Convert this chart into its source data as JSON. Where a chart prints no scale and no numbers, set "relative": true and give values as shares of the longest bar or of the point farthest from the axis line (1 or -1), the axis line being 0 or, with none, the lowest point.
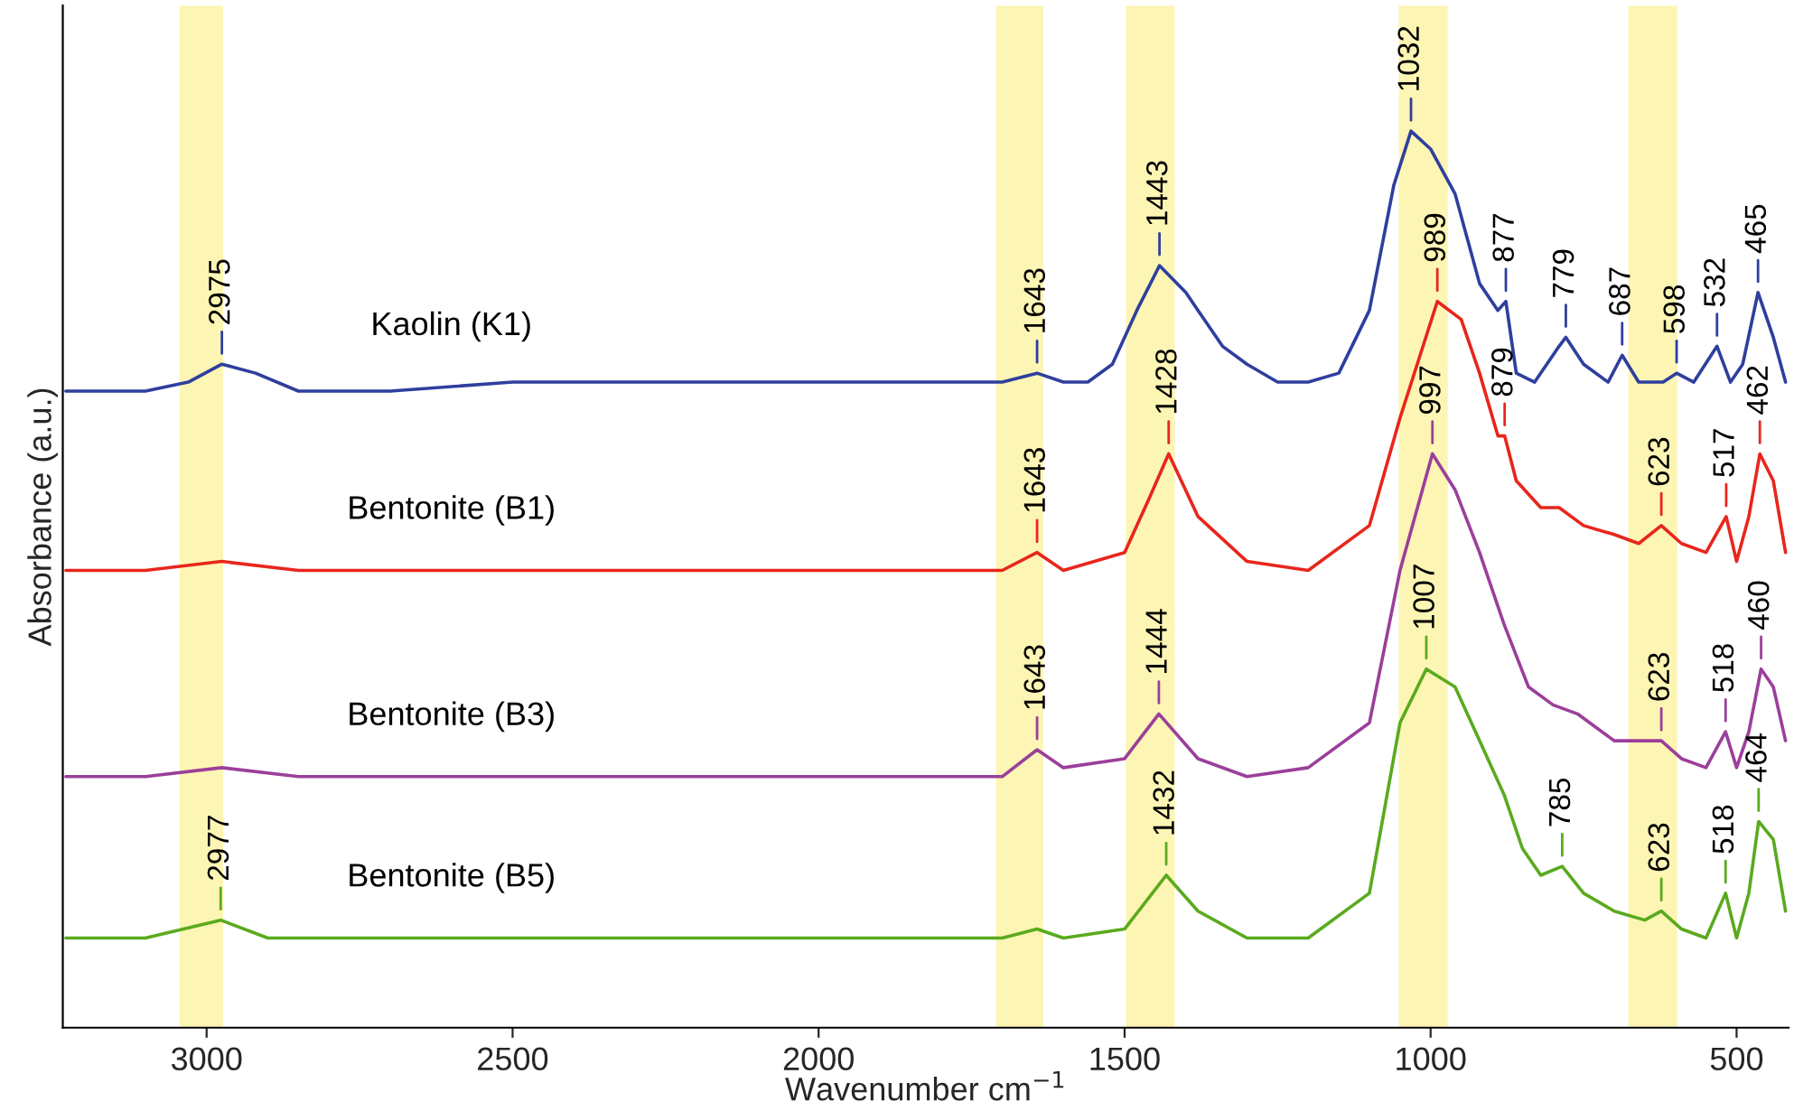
{
  "chart_data": {
    "type": "line",
    "relative": true,
    "xlabel": "Wavenumber cm$^{−1}$",
    "ylabel": "Absorbance (a.u.)",
    "xlim": [
      3235,
      415
    ],
    "xticks": [
      3000,
      2500,
      2000,
      1500,
      1000,
      500
    ],
    "tick_labels": "x",
    "grid": false,
    "legend": false,
    "marker": "none",
    "line_style": "solid",
    "series": [
      {
        "name": "Kaolin (K1)",
        "color": "#2e3f9e",
        "x": [
          3230,
          3100,
          3030,
          2975,
          2920,
          2850,
          2700,
          2500,
          2300,
          2100,
          1900,
          1750,
          1700,
          1643,
          1600,
          1560,
          1520,
          1480,
          1443,
          1400,
          1380,
          1340,
          1300,
          1250,
          1200,
          1150,
          1100,
          1060,
          1032,
          1000,
          960,
          920,
          890,
          877,
          860,
          830,
          790,
          779,
          750,
          710,
          687,
          660,
          620,
          598,
          570,
          532,
          510,
          490,
          465,
          440,
          420
        ],
        "values": [
          0.71,
          0.71,
          0.72,
          0.74,
          0.73,
          0.71,
          0.71,
          0.72,
          0.72,
          0.72,
          0.72,
          0.72,
          0.72,
          0.73,
          0.72,
          0.72,
          0.74,
          0.8,
          0.85,
          0.82,
          0.8,
          0.76,
          0.74,
          0.72,
          0.72,
          0.73,
          0.8,
          0.94,
          1.0,
          0.98,
          0.93,
          0.83,
          0.8,
          0.81,
          0.73,
          0.72,
          0.76,
          0.77,
          0.74,
          0.72,
          0.75,
          0.72,
          0.72,
          0.73,
          0.72,
          0.76,
          0.72,
          0.74,
          0.82,
          0.77,
          0.72
        ]
      },
      {
        "name": "Bentonite (B1)",
        "color": "#e8261c",
        "x": [
          3230,
          3100,
          2975,
          2850,
          2500,
          2100,
          1700,
          1643,
          1600,
          1500,
          1460,
          1428,
          1380,
          1300,
          1200,
          1100,
          1050,
          989,
          950,
          920,
          890,
          879,
          860,
          820,
          790,
          750,
          700,
          660,
          623,
          590,
          550,
          517,
          500,
          480,
          462,
          440,
          420
        ],
        "values": [
          0.51,
          0.51,
          0.52,
          0.51,
          0.51,
          0.51,
          0.51,
          0.53,
          0.51,
          0.53,
          0.59,
          0.64,
          0.57,
          0.52,
          0.51,
          0.56,
          0.68,
          0.81,
          0.79,
          0.73,
          0.66,
          0.66,
          0.61,
          0.58,
          0.58,
          0.56,
          0.55,
          0.54,
          0.56,
          0.54,
          0.53,
          0.57,
          0.52,
          0.57,
          0.64,
          0.61,
          0.53
        ]
      },
      {
        "name": "Bentonite (B3)",
        "color": "#9b3f9b",
        "x": [
          3230,
          3100,
          2975,
          2850,
          2500,
          2100,
          1700,
          1643,
          1600,
          1500,
          1444,
          1380,
          1300,
          1200,
          1100,
          1050,
          997,
          960,
          920,
          880,
          840,
          800,
          760,
          700,
          660,
          623,
          590,
          550,
          518,
          500,
          480,
          460,
          440,
          420
        ],
        "values": [
          0.28,
          0.28,
          0.29,
          0.28,
          0.28,
          0.28,
          0.28,
          0.31,
          0.29,
          0.3,
          0.35,
          0.3,
          0.28,
          0.29,
          0.34,
          0.51,
          0.64,
          0.6,
          0.53,
          0.45,
          0.38,
          0.36,
          0.35,
          0.32,
          0.32,
          0.32,
          0.3,
          0.29,
          0.33,
          0.29,
          0.33,
          0.4,
          0.38,
          0.32
        ]
      },
      {
        "name": "Bentonite (B5)",
        "color": "#5aaa1e",
        "x": [
          3230,
          3100,
          2977,
          2900,
          2800,
          2500,
          2100,
          1700,
          1643,
          1600,
          1500,
          1432,
          1380,
          1300,
          1200,
          1100,
          1050,
          1007,
          960,
          920,
          880,
          850,
          820,
          785,
          750,
          700,
          650,
          623,
          590,
          550,
          518,
          500,
          480,
          464,
          440,
          420
        ],
        "values": [
          0.1,
          0.1,
          0.12,
          0.1,
          0.1,
          0.1,
          0.1,
          0.1,
          0.11,
          0.1,
          0.11,
          0.17,
          0.13,
          0.1,
          0.1,
          0.15,
          0.34,
          0.4,
          0.38,
          0.32,
          0.26,
          0.2,
          0.17,
          0.18,
          0.15,
          0.13,
          0.12,
          0.13,
          0.11,
          0.1,
          0.15,
          0.1,
          0.15,
          0.23,
          0.21,
          0.13
        ]
      }
    ],
    "bands": [
      {
        "axis": "x",
        "from": 3044,
        "to": 2973,
        "color": "#fdf5b4"
      },
      {
        "axis": "x",
        "from": 1710,
        "to": 1633,
        "color": "#fdf5b4"
      },
      {
        "axis": "x",
        "from": 1498,
        "to": 1418,
        "color": "#fdf5b4"
      },
      {
        "axis": "x",
        "from": 1052,
        "to": 972,
        "color": "#fdf5b4"
      },
      {
        "axis": "x",
        "from": 677,
        "to": 597,
        "color": "#fdf5b4"
      }
    ],
    "annotations": [
      {
        "text": "2975",
        "x": 2975,
        "y": 0.74
      },
      {
        "text": "1643",
        "x": 1643,
        "y": 0.73
      },
      {
        "text": "1443",
        "x": 1443,
        "y": 0.85
      },
      {
        "text": "1032",
        "x": 1032,
        "y": 1.0
      },
      {
        "text": "877",
        "x": 877,
        "y": 0.81
      },
      {
        "text": "779",
        "x": 779,
        "y": 0.77
      },
      {
        "text": "687",
        "x": 687,
        "y": 0.75
      },
      {
        "text": "598",
        "x": 598,
        "y": 0.73
      },
      {
        "text": "532",
        "x": 532,
        "y": 0.76
      },
      {
        "text": "465",
        "x": 465,
        "y": 0.82
      },
      {
        "text": "989",
        "x": 989,
        "y": 0.81
      },
      {
        "text": "879",
        "x": 879,
        "y": 0.66
      },
      {
        "text": "1643",
        "x": 1643,
        "y": 0.53
      },
      {
        "text": "1428",
        "x": 1428,
        "y": 0.64
      },
      {
        "text": "623",
        "x": 623,
        "y": 0.56
      },
      {
        "text": "517",
        "x": 517,
        "y": 0.57
      },
      {
        "text": "462",
        "x": 462,
        "y": 0.64
      },
      {
        "text": "1643",
        "x": 1643,
        "y": 0.31
      },
      {
        "text": "1444",
        "x": 1444,
        "y": 0.35
      },
      {
        "text": "997",
        "x": 997,
        "y": 0.64
      },
      {
        "text": "623",
        "x": 623,
        "y": 0.32
      },
      {
        "text": "518",
        "x": 518,
        "y": 0.33
      },
      {
        "text": "460",
        "x": 460,
        "y": 0.4
      },
      {
        "text": "2977",
        "x": 2977,
        "y": 0.12
      },
      {
        "text": "1432",
        "x": 1432,
        "y": 0.17
      },
      {
        "text": "1007",
        "x": 1007,
        "y": 0.4
      },
      {
        "text": "785",
        "x": 785,
        "y": 0.18
      },
      {
        "text": "623",
        "x": 623,
        "y": 0.13
      },
      {
        "text": "518",
        "x": 518,
        "y": 0.15
      },
      {
        "text": "464",
        "x": 464,
        "y": 0.23
      }
    ]
  }
}
